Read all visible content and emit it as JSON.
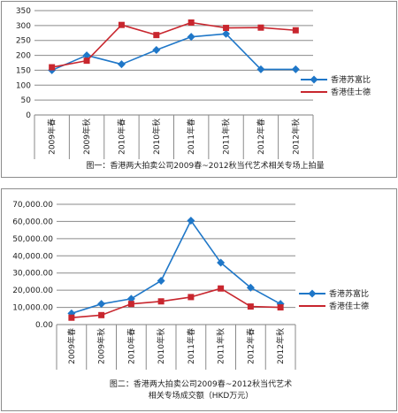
{
  "chart_data": [
    {
      "type": "line",
      "title": "图一：香港两大拍卖公司2009春~2012秋当代艺术相关专场上拍量",
      "categories": [
        "2009年春",
        "2009年秋",
        "2010年春",
        "2010年秋",
        "2011年春",
        "2011年秋",
        "2012年春",
        "2012年秋"
      ],
      "yticks": [
        "0",
        "50",
        "100",
        "150",
        "200",
        "250",
        "300",
        "350"
      ],
      "ylim": [
        0,
        350
      ],
      "grid": true,
      "legend_position": "right",
      "series": [
        {
          "name": "香港苏富比",
          "color": "#1f77c8",
          "marker": "diamond",
          "values": [
            150,
            200,
            170,
            218,
            262,
            272,
            153,
            153
          ]
        },
        {
          "name": "香港佳士德",
          "color": "#c8262e",
          "marker": "square",
          "values": [
            160,
            182,
            302,
            268,
            310,
            292,
            293,
            284
          ]
        }
      ]
    },
    {
      "type": "line",
      "title_lines": [
        "图二：香港两大拍卖公司2009春~2012秋当代艺术",
        "相关专场成交额（HKD万元）"
      ],
      "categories": [
        "2009年春",
        "2009年秋",
        "2010年春",
        "2010年秋",
        "2011年春",
        "2011年秋",
        "2012年春",
        "2012年秋"
      ],
      "yticks": [
        "0.00",
        "10,000.00",
        "20,000.00",
        "30,000.00",
        "40,000.00",
        "50,000.00",
        "60,000.00",
        "70,000.00"
      ],
      "ylim": [
        0,
        70000
      ],
      "grid": true,
      "legend_position": "right",
      "series": [
        {
          "name": "香港苏富比",
          "color": "#1f77c8",
          "marker": "diamond",
          "values": [
            6500,
            12000,
            15000,
            25500,
            60500,
            36000,
            21500,
            12000
          ]
        },
        {
          "name": "香港佳士德",
          "color": "#c8262e",
          "marker": "square",
          "values": [
            4000,
            5500,
            12000,
            13500,
            16000,
            21000,
            10500,
            10000
          ]
        }
      ]
    }
  ]
}
